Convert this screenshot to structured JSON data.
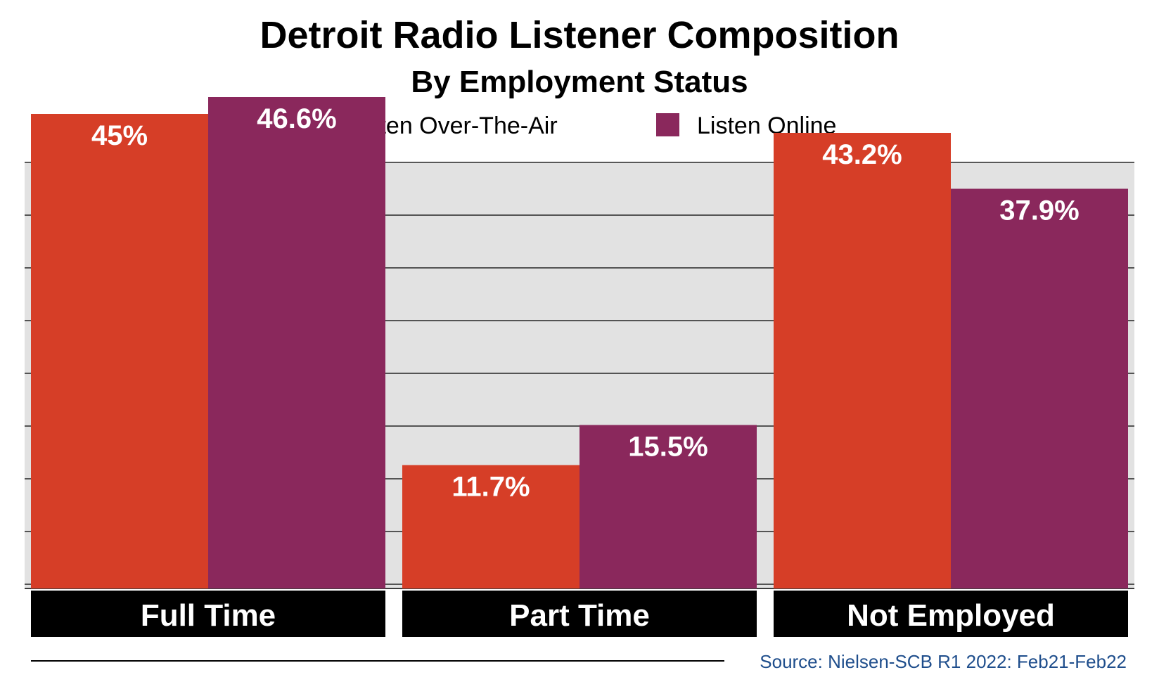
{
  "chart_data": {
    "type": "bar",
    "title": "Detroit Radio Listener Composition",
    "subtitle": "By Employment Status",
    "categories": [
      "Full Time",
      "Part Time",
      "Not Employed"
    ],
    "series": [
      {
        "name": "Listen Over-The-Air",
        "color": "#d63e27",
        "values": [
          45,
          11.7,
          43.2
        ],
        "labels": [
          "45%",
          "11.7%",
          "43.2%"
        ]
      },
      {
        "name": "Listen Online",
        "color": "#8a285c",
        "values": [
          46.6,
          15.5,
          37.9
        ],
        "labels": [
          "46.6%",
          "15.5%",
          "37.9%"
        ]
      }
    ],
    "ylim": [
      0,
      50
    ],
    "grid": true,
    "legend_position": "top-center",
    "source": "Source: Nielsen-SCB R1 2022: Feb21-Feb22"
  },
  "colors": {
    "plot_background": "#e2e2e2",
    "gridline": "#000000",
    "category_band": "#000000",
    "source_text": "#1f4e8c"
  }
}
